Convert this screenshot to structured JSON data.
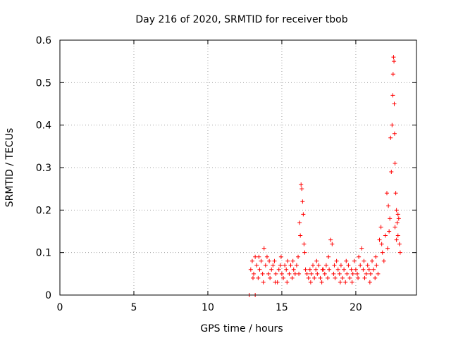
{
  "chart_data": {
    "type": "scatter",
    "title": "Day 216 of 2020, SRMTID for receiver tbob",
    "xlabel": "GPS time / hours",
    "ylabel": "SRMTID / TECUs",
    "xlim": [
      0,
      24.1
    ],
    "ylim": [
      0,
      0.6
    ],
    "xticks": [
      0,
      5,
      10,
      15,
      20
    ],
    "xtick_labels": [
      "0",
      "5",
      "10",
      "15",
      "20"
    ],
    "yticks": [
      0,
      0.1,
      0.2,
      0.3,
      0.4,
      0.5,
      0.6
    ],
    "ytick_labels": [
      "0",
      "0.1",
      "0.2",
      "0.3",
      "0.4",
      "0.5",
      "0.6"
    ],
    "grid": true,
    "marker": "+",
    "color": "#ff0000",
    "series": [
      {
        "name": "SRMTID",
        "points": [
          [
            12.8,
            0.0
          ],
          [
            13.2,
            0.0
          ],
          [
            12.9,
            0.06
          ],
          [
            13.0,
            0.08
          ],
          [
            13.1,
            0.05
          ],
          [
            13.2,
            0.09
          ],
          [
            13.3,
            0.07
          ],
          [
            13.4,
            0.04
          ],
          [
            13.5,
            0.06
          ],
          [
            13.6,
            0.08
          ],
          [
            13.7,
            0.05
          ],
          [
            13.8,
            0.11
          ],
          [
            13.9,
            0.07
          ],
          [
            14.0,
            0.09
          ],
          [
            14.1,
            0.05
          ],
          [
            14.2,
            0.04
          ],
          [
            14.3,
            0.06
          ],
          [
            14.4,
            0.07
          ],
          [
            14.5,
            0.08
          ],
          [
            14.6,
            0.05
          ],
          [
            14.7,
            0.03
          ],
          [
            14.8,
            0.06
          ],
          [
            14.9,
            0.07
          ],
          [
            15.0,
            0.05
          ],
          [
            15.1,
            0.04
          ],
          [
            15.2,
            0.07
          ],
          [
            15.3,
            0.06
          ],
          [
            15.4,
            0.08
          ],
          [
            15.5,
            0.05
          ],
          [
            15.6,
            0.07
          ],
          [
            15.7,
            0.04
          ],
          [
            15.8,
            0.06
          ],
          [
            15.9,
            0.05
          ],
          [
            16.0,
            0.07
          ],
          [
            16.1,
            0.09
          ],
          [
            16.2,
            0.17
          ],
          [
            16.25,
            0.14
          ],
          [
            16.3,
            0.26
          ],
          [
            16.35,
            0.25
          ],
          [
            16.4,
            0.22
          ],
          [
            16.45,
            0.19
          ],
          [
            16.5,
            0.12
          ],
          [
            16.6,
            0.06
          ],
          [
            16.7,
            0.05
          ],
          [
            16.8,
            0.04
          ],
          [
            16.9,
            0.06
          ],
          [
            17.0,
            0.05
          ],
          [
            17.1,
            0.07
          ],
          [
            17.2,
            0.04
          ],
          [
            17.3,
            0.06
          ],
          [
            17.4,
            0.05
          ],
          [
            17.5,
            0.07
          ],
          [
            17.6,
            0.04
          ],
          [
            17.7,
            0.03
          ],
          [
            17.8,
            0.06
          ],
          [
            17.9,
            0.05
          ],
          [
            18.0,
            0.07
          ],
          [
            18.1,
            0.04
          ],
          [
            18.2,
            0.06
          ],
          [
            18.3,
            0.13
          ],
          [
            18.4,
            0.12
          ],
          [
            18.5,
            0.05
          ],
          [
            18.6,
            0.04
          ],
          [
            18.7,
            0.08
          ],
          [
            18.8,
            0.06
          ],
          [
            18.9,
            0.05
          ],
          [
            19.0,
            0.07
          ],
          [
            19.1,
            0.04
          ],
          [
            19.2,
            0.06
          ],
          [
            19.3,
            0.03
          ],
          [
            19.4,
            0.05
          ],
          [
            19.5,
            0.07
          ],
          [
            19.6,
            0.04
          ],
          [
            19.7,
            0.06
          ],
          [
            19.8,
            0.05
          ],
          [
            19.9,
            0.08
          ],
          [
            20.0,
            0.06
          ],
          [
            20.1,
            0.05
          ],
          [
            20.2,
            0.09
          ],
          [
            20.3,
            0.07
          ],
          [
            20.4,
            0.11
          ],
          [
            20.5,
            0.06
          ],
          [
            20.6,
            0.04
          ],
          [
            20.7,
            0.05
          ],
          [
            20.8,
            0.07
          ],
          [
            20.9,
            0.06
          ],
          [
            21.0,
            0.05
          ],
          [
            21.1,
            0.08
          ],
          [
            21.2,
            0.06
          ],
          [
            21.3,
            0.04
          ],
          [
            21.4,
            0.07
          ],
          [
            21.5,
            0.05
          ],
          [
            21.6,
            0.13
          ],
          [
            21.7,
            0.16
          ],
          [
            21.8,
            0.1
          ],
          [
            21.9,
            0.08
          ],
          [
            22.0,
            0.14
          ],
          [
            22.1,
            0.24
          ],
          [
            22.2,
            0.21
          ],
          [
            22.3,
            0.18
          ],
          [
            22.35,
            0.37
          ],
          [
            22.4,
            0.29
          ],
          [
            22.45,
            0.4
          ],
          [
            22.5,
            0.47
          ],
          [
            22.52,
            0.52
          ],
          [
            22.55,
            0.56
          ],
          [
            22.58,
            0.55
          ],
          [
            22.6,
            0.45
          ],
          [
            22.62,
            0.38
          ],
          [
            22.65,
            0.31
          ],
          [
            22.7,
            0.24
          ],
          [
            22.75,
            0.2
          ],
          [
            22.8,
            0.17
          ],
          [
            22.85,
            0.14
          ],
          [
            22.9,
            0.18
          ],
          [
            22.95,
            0.12
          ],
          [
            23.0,
            0.1
          ],
          [
            13.05,
            0.04
          ],
          [
            13.45,
            0.09
          ],
          [
            13.75,
            0.03
          ],
          [
            14.15,
            0.08
          ],
          [
            14.55,
            0.03
          ],
          [
            14.95,
            0.09
          ],
          [
            15.35,
            0.03
          ],
          [
            15.75,
            0.08
          ],
          [
            16.15,
            0.05
          ],
          [
            16.55,
            0.1
          ],
          [
            16.95,
            0.03
          ],
          [
            17.35,
            0.08
          ],
          [
            17.75,
            0.06
          ],
          [
            18.15,
            0.09
          ],
          [
            18.55,
            0.07
          ],
          [
            18.95,
            0.03
          ],
          [
            19.35,
            0.08
          ],
          [
            19.75,
            0.03
          ],
          [
            20.15,
            0.04
          ],
          [
            20.55,
            0.08
          ],
          [
            20.95,
            0.03
          ],
          [
            21.35,
            0.09
          ],
          [
            21.75,
            0.12
          ],
          [
            22.15,
            0.11
          ],
          [
            22.25,
            0.15
          ],
          [
            22.65,
            0.16
          ],
          [
            22.75,
            0.13
          ],
          [
            22.85,
            0.19
          ]
        ]
      }
    ]
  }
}
